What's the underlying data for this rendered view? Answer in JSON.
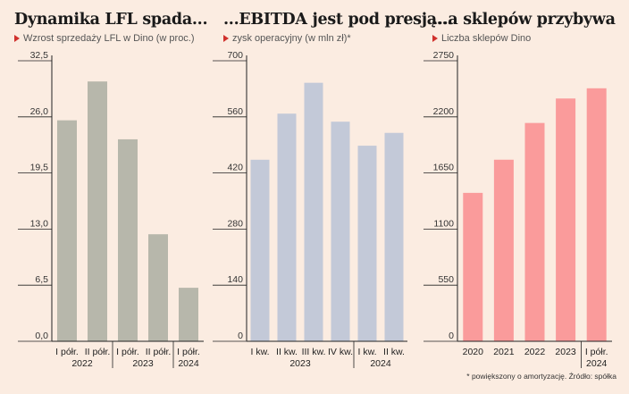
{
  "chart_data": [
    {
      "type": "bar",
      "title": "Dynamika LFL spada...",
      "subtitle": "Wzrost sprzedaży LFL w Dino (w proc.)",
      "categories": [
        "I półr.",
        "II półr.",
        "I półr.",
        "II półr.",
        "I półr."
      ],
      "groups": [
        {
          "label": "2022",
          "from": 0,
          "to": 1
        },
        {
          "label": "2023",
          "from": 2,
          "to": 3
        },
        {
          "label": "2024",
          "from": 4,
          "to": 4
        }
      ],
      "values": [
        25.6,
        30.1,
        23.4,
        12.4,
        6.2
      ],
      "yticks": [
        "0,0",
        "6,5",
        "13,0",
        "19,5",
        "26,0",
        "32,5"
      ],
      "ylim": [
        0,
        32.5
      ],
      "color": "#b7b7ab",
      "grid": false
    },
    {
      "type": "bar",
      "title": "...EBITDA jest pod presją...",
      "subtitle": "zysk operacyjny (w mln zł)*",
      "categories": [
        "I kw.",
        "II kw.",
        "III kw.",
        "IV kw.",
        "I kw.",
        "II kw."
      ],
      "groups": [
        {
          "label": "2023",
          "from": 0,
          "to": 3
        },
        {
          "label": "2024",
          "from": 4,
          "to": 5
        }
      ],
      "values": [
        453,
        568,
        645,
        548,
        488,
        520
      ],
      "yticks": [
        "0",
        "140",
        "280",
        "420",
        "560",
        "700"
      ],
      "ylim": [
        0,
        700
      ],
      "color": "#c3c9d8",
      "grid": false
    },
    {
      "type": "bar",
      "title": "...a sklepów przybywa",
      "subtitle": "Liczba sklepów Dino",
      "categories": [
        "2020",
        "2021",
        "2022",
        "2023",
        "I półr."
      ],
      "groups": [
        {
          "label": "2024",
          "from": 4,
          "to": 4
        }
      ],
      "values": [
        1455,
        1780,
        2140,
        2380,
        2480
      ],
      "yticks": [
        "0",
        "550",
        "1100",
        "1650",
        "2200",
        "2750"
      ],
      "ylim": [
        0,
        2750
      ],
      "color": "#fa9b9b",
      "grid": false
    }
  ],
  "footnote": "* powiększony o amortyzację. Źródło: spółka"
}
